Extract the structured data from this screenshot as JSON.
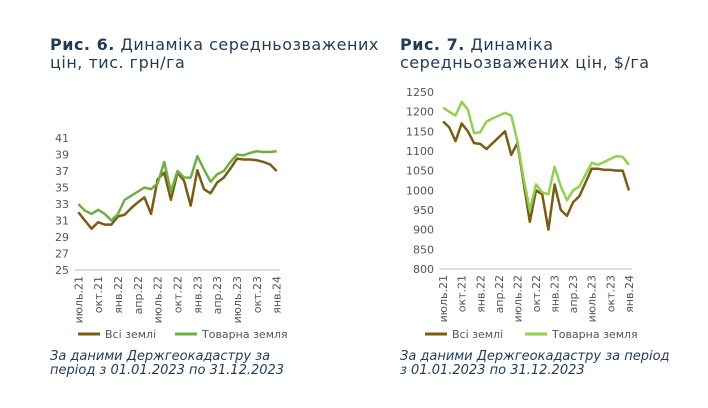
{
  "chart_data": [
    {
      "type": "line",
      "figure_label": "Рис. 6.",
      "title": "Динаміка середньозважених цін, тис. грн/га",
      "categories": [
        "июль.21",
        null,
        null,
        "окт.21",
        null,
        null,
        "янв.22",
        null,
        null,
        "апр.22",
        null,
        null,
        "июль.22",
        null,
        null,
        "окт.22",
        null,
        null,
        "янв.23",
        null,
        null,
        "апр.23",
        null,
        null,
        "июль.23",
        null,
        null,
        "окт.23",
        null,
        null,
        "янв.24"
      ],
      "series": [
        {
          "name": "Всі землі",
          "color": "#7a5c12",
          "values": [
            32,
            31,
            30,
            30.8,
            30.5,
            30.5,
            31.5,
            31.7,
            32.5,
            33.2,
            33.8,
            31.8,
            36,
            36.8,
            33.5,
            36.8,
            35.8,
            32.8,
            37.1,
            34.8,
            34.3,
            35.6,
            36.2,
            37.3,
            38.5,
            38.4,
            38.4,
            38.3,
            38.1,
            37.8,
            37
          ]
        },
        {
          "name": "Товарна земля",
          "color": "#70ad47",
          "values": [
            33,
            32.2,
            31.8,
            32.3,
            31.8,
            31,
            31.8,
            33.5,
            34,
            34.5,
            35,
            34.8,
            35.5,
            38.1,
            34.5,
            37,
            36.2,
            36.2,
            38.8,
            37.2,
            35.7,
            36.6,
            37,
            38.1,
            39,
            38.9,
            39.2,
            39.4,
            39.3,
            39.3,
            39.4
          ]
        }
      ],
      "ylim": [
        25,
        41
      ],
      "yticks": [
        25,
        27,
        29,
        31,
        33,
        35,
        37,
        39,
        41
      ],
      "source": "За даними Держгеокадастру за період з 01.01.2023 по 31.12.2023"
    },
    {
      "type": "line",
      "figure_label": "Рис. 7.",
      "title": "Динаміка середньозважених цін, $/га",
      "categories": [
        "июль.21",
        null,
        null,
        "окт.21",
        null,
        null,
        "янв.22",
        null,
        null,
        "апр.22",
        null,
        null,
        "июль.22",
        null,
        null,
        "окт.22",
        null,
        null,
        "янв.23",
        null,
        null,
        "апр.23",
        null,
        null,
        "июль.23",
        null,
        null,
        "окт.23",
        null,
        null,
        "янв.24"
      ],
      "series": [
        {
          "name": "Всі землі",
          "color": "#7a5c12",
          "values": [
            1175,
            1160,
            1125,
            1170,
            1150,
            1120,
            1118,
            1105,
            1120,
            1135,
            1150,
            1090,
            1120,
            1020,
            920,
            1000,
            990,
            900,
            1015,
            950,
            935,
            970,
            985,
            1020,
            1055,
            1055,
            1052,
            1052,
            1050,
            1050,
            1000
          ]
        },
        {
          "name": "Товарна земля",
          "color": "#92d050",
          "values": [
            1210,
            1200,
            1190,
            1225,
            1205,
            1145,
            1148,
            1175,
            1183,
            1190,
            1197,
            1190,
            1125,
            1030,
            950,
            1015,
            995,
            990,
            1060,
            1010,
            975,
            1000,
            1010,
            1040,
            1070,
            1065,
            1072,
            1080,
            1087,
            1085,
            1065
          ]
        }
      ],
      "ylim": [
        800,
        1250
      ],
      "yticks": [
        800,
        850,
        900,
        950,
        1000,
        1050,
        1100,
        1150,
        1200,
        1250
      ],
      "source": "За даними Держгеокадастру за період з 01.01.2023 по 31.12.2023"
    }
  ]
}
